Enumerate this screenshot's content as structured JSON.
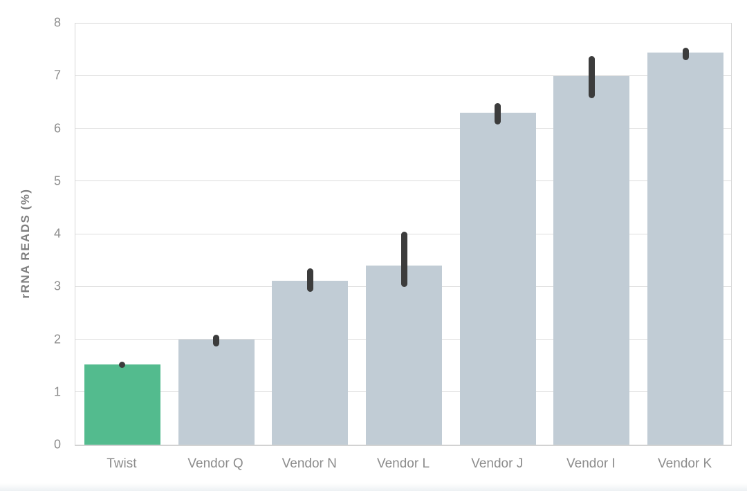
{
  "chart_data": {
    "type": "bar",
    "title": "",
    "xlabel": "",
    "ylabel": "rRNA READS (%)",
    "ylim": [
      0,
      8
    ],
    "yticks": [
      0,
      1,
      2,
      3,
      4,
      5,
      6,
      7,
      8
    ],
    "grid": true,
    "legend": "none",
    "categories": [
      "Twist",
      "Vendor Q",
      "Vendor N",
      "Vendor L",
      "Vendor J",
      "Vendor I",
      "Vendor K"
    ],
    "values": [
      1.52,
      2.0,
      3.12,
      3.4,
      6.3,
      7.0,
      7.45
    ],
    "error_low": [
      1.46,
      1.86,
      2.9,
      3.0,
      6.08,
      6.58,
      7.31
    ],
    "error_high": [
      1.58,
      2.09,
      3.35,
      4.04,
      6.49,
      7.38,
      7.54
    ],
    "bar_colors": [
      "#53bb8e",
      "#c1ccd5",
      "#c1ccd5",
      "#c1ccd5",
      "#c1ccd5",
      "#c1ccd5",
      "#c1ccd5"
    ],
    "highlight_category": "Twist"
  },
  "colors": {
    "highlight_bar": "#53bb8e",
    "default_bar": "#c1ccd5",
    "error_bar": "#3c3c3c",
    "gridline": "#dcdcdc",
    "axis_border": "#d6d6d6",
    "tick_label": "#8c8c8c",
    "axis_title": "#7f7f7f",
    "background": "#ffffff",
    "footer_strip": "#edf1f4"
  }
}
